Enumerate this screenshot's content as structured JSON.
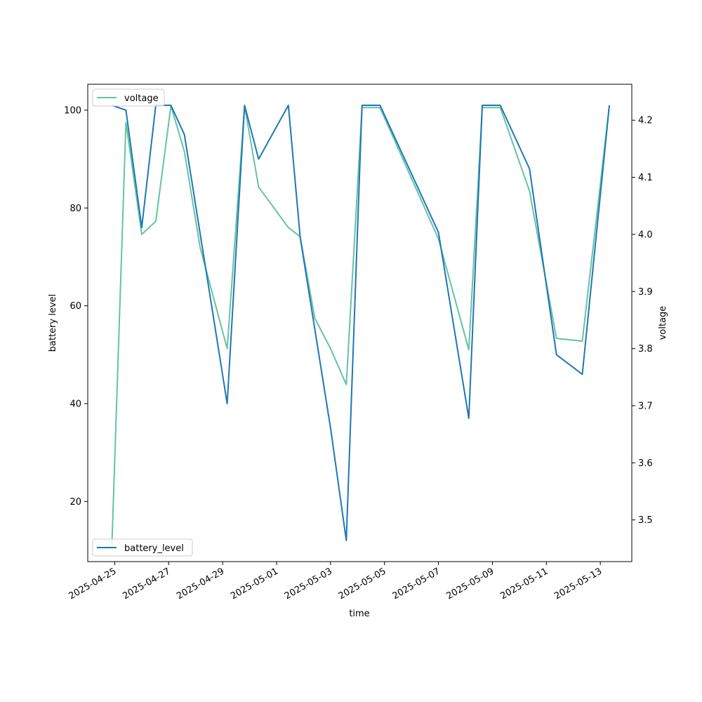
{
  "chart_data": {
    "type": "line",
    "x_label": "time",
    "y_label_left": "battery level",
    "y_label_right": "voltage",
    "x_range": [
      "2025-04-24T00:00",
      "2025-05-14T04:00"
    ],
    "y_left_range": [
      7.7,
      105.3
    ],
    "y_right_range": [
      3.427,
      4.263
    ],
    "x_ticks": [
      "2025-04-25",
      "2025-04-27",
      "2025-04-29",
      "2025-05-01",
      "2025-05-03",
      "2025-05-05",
      "2025-05-07",
      "2025-05-09",
      "2025-05-11",
      "2025-05-13"
    ],
    "y_left_ticks": [
      20,
      40,
      60,
      80,
      100
    ],
    "y_right_ticks": [
      3.5,
      3.6,
      3.7,
      3.8,
      3.9,
      4.0,
      4.1,
      4.2
    ],
    "grid": false,
    "series": [
      {
        "name": "voltage",
        "axis": "right",
        "color": "#66c2a5",
        "legend_position": "upper-left",
        "points": [
          [
            "2025-04-24T21:30",
            3.455
          ],
          [
            "2025-04-25T10:00",
            4.196
          ],
          [
            "2025-04-26T00:00",
            4.0
          ],
          [
            "2025-04-26T12:30",
            4.023
          ],
          [
            "2025-04-27T02:00",
            4.225
          ],
          [
            "2025-04-27T14:00",
            4.145
          ],
          [
            "2025-04-28T04:00",
            3.977
          ],
          [
            "2025-04-29T04:00",
            3.8
          ],
          [
            "2025-04-29T19:30",
            4.225
          ],
          [
            "2025-04-30T08:00",
            4.083
          ],
          [
            "2025-05-01T10:30",
            4.012
          ],
          [
            "2025-05-01T21:00",
            3.996
          ],
          [
            "2025-05-02T10:00",
            3.853
          ],
          [
            "2025-05-03T00:00",
            3.8
          ],
          [
            "2025-05-03T14:00",
            3.737
          ],
          [
            "2025-05-04T04:00",
            4.222
          ],
          [
            "2025-05-04T20:00",
            4.222
          ],
          [
            "2025-05-07T00:00",
            3.992
          ],
          [
            "2025-05-08T03:00",
            3.798
          ],
          [
            "2025-05-08T15:00",
            4.222
          ],
          [
            "2025-05-09T07:00",
            4.222
          ],
          [
            "2025-05-10T09:00",
            4.076
          ],
          [
            "2025-05-11T09:00",
            3.818
          ],
          [
            "2025-05-12T08:00",
            3.813
          ],
          [
            "2025-05-13T08:00",
            4.225
          ]
        ]
      },
      {
        "name": "battery_level",
        "axis": "left",
        "color": "#1f77b4",
        "legend_position": "lower-left",
        "points": [
          [
            "2025-04-24T21:30",
            101
          ],
          [
            "2025-04-25T10:00",
            100
          ],
          [
            "2025-04-26T00:00",
            76
          ],
          [
            "2025-04-26T12:30",
            101
          ],
          [
            "2025-04-27T02:00",
            101
          ],
          [
            "2025-04-27T14:00",
            95
          ],
          [
            "2025-04-29T04:00",
            40
          ],
          [
            "2025-04-29T19:30",
            101
          ],
          [
            "2025-04-30T08:00",
            90
          ],
          [
            "2025-05-01T10:30",
            101
          ],
          [
            "2025-05-01T21:00",
            74
          ],
          [
            "2025-05-03T00:00",
            35
          ],
          [
            "2025-05-03T14:00",
            12
          ],
          [
            "2025-05-04T04:00",
            101
          ],
          [
            "2025-05-04T20:00",
            101
          ],
          [
            "2025-05-07T00:00",
            75
          ],
          [
            "2025-05-08T03:00",
            37
          ],
          [
            "2025-05-08T15:00",
            101
          ],
          [
            "2025-05-09T07:00",
            101
          ],
          [
            "2025-05-10T09:00",
            88
          ],
          [
            "2025-05-11T09:00",
            50
          ],
          [
            "2025-05-12T08:00",
            46
          ],
          [
            "2025-05-13T08:00",
            101
          ]
        ]
      }
    ]
  }
}
